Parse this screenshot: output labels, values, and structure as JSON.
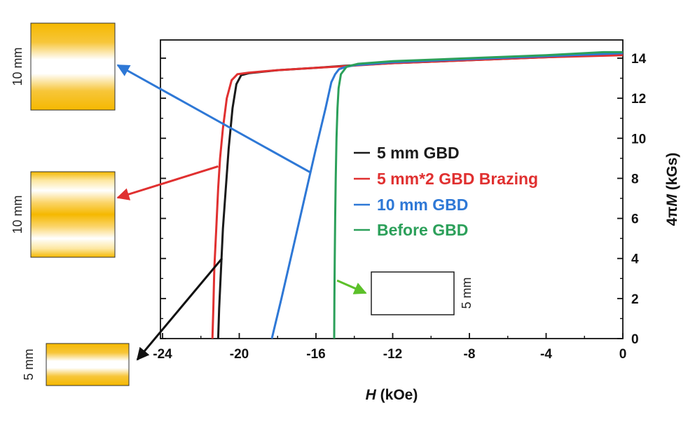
{
  "chart_data": {
    "type": "line",
    "xlabel": {
      "var": "H",
      "unit": " (kOe)"
    },
    "ylabel": {
      "var": "M",
      "prefix": "4π",
      "unit": " (kGs)"
    },
    "xlim": [
      -24,
      0
    ],
    "ylim": [
      0,
      14.6
    ],
    "xticks": [
      -24,
      -20,
      -16,
      -12,
      -8,
      -4,
      0
    ],
    "yticks": [
      0,
      2,
      4,
      6,
      8,
      10,
      12,
      14
    ],
    "grid": false,
    "legend_placement": "center",
    "series": [
      {
        "name": "5 mm GBD",
        "color": "#1a1a1a",
        "x": [
          -21.1,
          -21.05,
          -20.95,
          -20.85,
          -20.7,
          -20.55,
          -20.35,
          -20.15,
          -19.9,
          -19.5,
          -18,
          -16,
          -14.5,
          -12,
          -8,
          -4,
          0
        ],
        "y": [
          0,
          1.5,
          3.5,
          5.5,
          7.5,
          9.5,
          11.5,
          12.7,
          13.15,
          13.25,
          13.4,
          13.52,
          13.62,
          13.75,
          13.9,
          14.05,
          14.2
        ]
      },
      {
        "name": "5 mm*2 GBD Brazing",
        "color": "#e03030",
        "x": [
          -21.4,
          -21.35,
          -21.3,
          -21.2,
          -21.1,
          -21.0,
          -20.85,
          -20.65,
          -20.4,
          -20.1,
          -19.5,
          -18,
          -16,
          -14.5,
          -12,
          -8,
          -4,
          0
        ],
        "y": [
          0,
          1.5,
          3.5,
          5.5,
          7.5,
          9,
          10.5,
          12,
          12.9,
          13.2,
          13.28,
          13.4,
          13.52,
          13.6,
          13.75,
          13.9,
          14.05,
          14.15
        ]
      },
      {
        "name": "10 mm GBD",
        "color": "#2e78d6",
        "x": [
          -18.3,
          -17.8,
          -17.2,
          -16.6,
          -16.0,
          -15.5,
          -15.2,
          -15.0,
          -14.8,
          -14.5,
          -14.0,
          -12,
          -8,
          -4,
          0
        ],
        "y": [
          0,
          2,
          4.5,
          7,
          9.5,
          11.5,
          12.8,
          13.2,
          13.45,
          13.55,
          13.65,
          13.8,
          13.95,
          14.1,
          14.25
        ]
      },
      {
        "name": "Before GBD",
        "color": "#2ca05a",
        "x": [
          -15.05,
          -15.04,
          -15.02,
          -15.0,
          -14.97,
          -14.93,
          -14.88,
          -14.82,
          -14.7,
          -14.4,
          -13.8,
          -12,
          -8,
          -4,
          -1,
          0
        ],
        "y": [
          0,
          2,
          4,
          6,
          8,
          10,
          11.5,
          12.5,
          13.2,
          13.58,
          13.72,
          13.85,
          14.0,
          14.15,
          14.3,
          14.3
        ]
      }
    ],
    "insets": [
      {
        "label": "10 mm",
        "bands": "edges",
        "arrow_color": "#2e78d6",
        "arrow_from": [
          -16.3,
          8.3
        ]
      },
      {
        "label": "10 mm",
        "bands": "double",
        "arrow_color": "#e03030",
        "arrow_from": [
          -21.1,
          8.6
        ]
      },
      {
        "label": "5 mm",
        "bands": "edges",
        "arrow_color": "#111111",
        "arrow_from": [
          -20.9,
          4.0
        ]
      },
      {
        "label": "5 mm",
        "bands": "none",
        "arrow_color": "#5cc02a",
        "arrow_from": [
          -14.9,
          2.9
        ]
      }
    ]
  }
}
